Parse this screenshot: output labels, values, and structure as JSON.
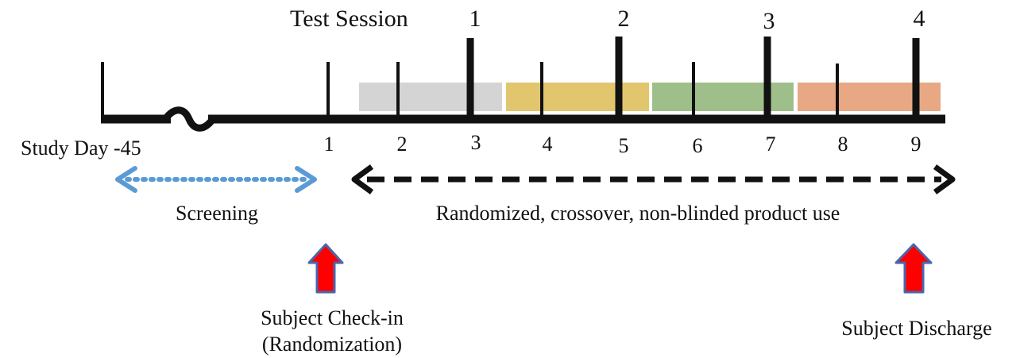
{
  "test_session_label": "Test Session",
  "session_numbers": [
    "1",
    "2",
    "3",
    "4"
  ],
  "study_day_label": "Study Day -45",
  "day_numbers": [
    "1",
    "2",
    "3",
    "4",
    "5",
    "6",
    "7",
    "8",
    "9"
  ],
  "screening_label": "Screening",
  "product_use_label": "Randomized, crossover, non-blinded product use",
  "checkin_label_line1": "Subject Check-in",
  "checkin_label_line2": "(Randomization)",
  "discharge_label": "Subject Discharge",
  "colors": {
    "timeline": "#111111",
    "period_1": "#d4d4d4",
    "period_2": "#e2c66e",
    "period_3": "#9fbf8a",
    "period_4": "#e8a884",
    "screening_arrow": "#5b9bd5",
    "event_arrow_fill": "#ff0000",
    "event_arrow_stroke": "#4a66ac"
  }
}
